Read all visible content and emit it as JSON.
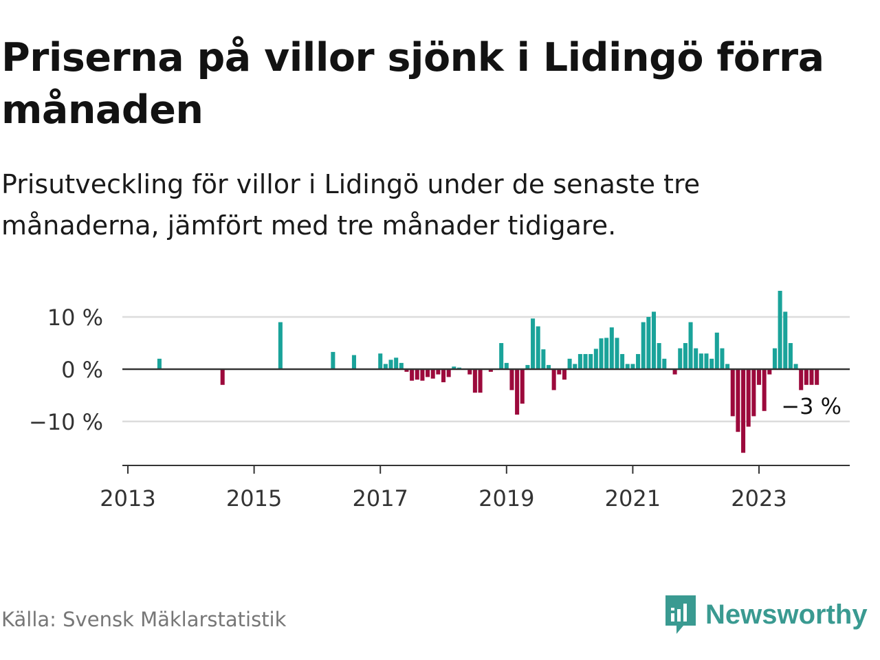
{
  "title": "Priserna på villor sjönk i Lidingö förra månaden",
  "subtitle": "Prisutveckling för villor i Lidingö under de senaste tre månaderna, jämfört med tre månader tidigare.",
  "source": "Källa: Svensk Mäklarstatistik",
  "brand": "Newsworthy",
  "colors": {
    "positive": "#1aa39a",
    "negative": "#9c0a3c",
    "brand": "#3a9a91"
  },
  "chart_data": {
    "type": "bar",
    "title": "Priserna på villor sjönk i Lidingö förra månaden",
    "xlabel": "",
    "ylabel": "",
    "x_start": "2013-01",
    "x_ticks": [
      "2013",
      "2015",
      "2017",
      "2019",
      "2021",
      "2023"
    ],
    "y_ticks": [
      -10,
      0,
      10
    ],
    "y_tick_labels": [
      "−10 %",
      "0 %",
      "10 %"
    ],
    "ylim": [
      -18,
      16
    ],
    "end_label": "−3 %",
    "series": [
      {
        "name": "Prisutveckling (%)",
        "values": [
          0,
          0,
          0,
          0,
          0,
          0,
          2,
          0,
          0,
          0,
          0,
          0,
          0,
          0,
          0,
          0,
          0,
          0,
          -3,
          0,
          0,
          0,
          0,
          0,
          0,
          0,
          0,
          0,
          0,
          9,
          0,
          0,
          0,
          0,
          0,
          0,
          0,
          0,
          0,
          3.3,
          0,
          0,
          0,
          2.7,
          0,
          0,
          0,
          0,
          3,
          1,
          1.8,
          2.2,
          1.2,
          -0.5,
          -2.2,
          -2,
          -2.2,
          -1.5,
          -1.8,
          -1,
          -2.5,
          -1.5,
          0.5,
          0.3,
          0,
          -1,
          -4.5,
          -4.5,
          0,
          -0.5,
          0,
          5,
          1.2,
          -4,
          -8.7,
          -6.6,
          0.8,
          9.7,
          8.2,
          3.8,
          0.8,
          -4,
          -1,
          -2,
          2,
          1,
          2.9,
          2.9,
          2.9,
          3.9,
          5.9,
          6,
          8,
          6,
          2.9,
          1,
          1,
          2.9,
          9,
          10,
          11,
          5,
          2,
          0,
          -1,
          4,
          5,
          9,
          4,
          3,
          3,
          2,
          7,
          4,
          1,
          -9,
          -12,
          -16,
          -11,
          -9,
          -3,
          -8,
          -1,
          4,
          15,
          11,
          5,
          1,
          -4,
          -3,
          -3,
          -3
        ]
      }
    ]
  }
}
